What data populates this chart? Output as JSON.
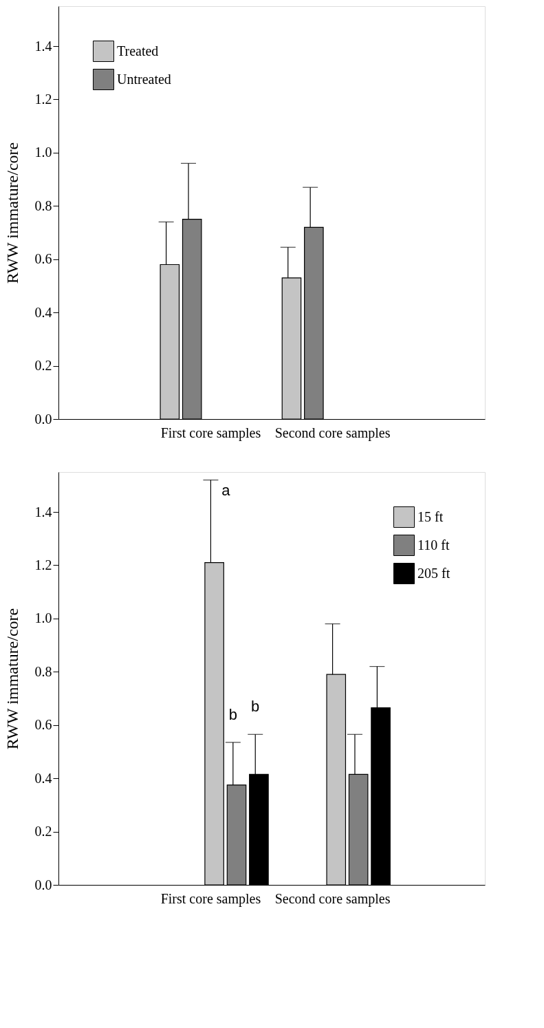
{
  "chart_data": [
    {
      "type": "bar",
      "ylabel": "RWW immature/core",
      "categories": [
        "First core samples",
        "Second core samples"
      ],
      "ylim": [
        0,
        1.55
      ],
      "yticks": [
        {
          "value": 0,
          "label": "0.0"
        },
        {
          "value": 0.2,
          "label": "0.2"
        },
        {
          "value": 0.4,
          "label": "0.4"
        },
        {
          "value": 0.6,
          "label": "0.6"
        },
        {
          "value": 0.8,
          "label": "0.8"
        },
        {
          "value": 1,
          "label": "1.0"
        },
        {
          "value": 1.2,
          "label": "1.2"
        },
        {
          "value": 1.4,
          "label": "1.4"
        }
      ],
      "legend": "top left",
      "series": [
        {
          "name": "Treated",
          "color": "#c4c4c4",
          "values": [
            0.58,
            0.53
          ],
          "errors": [
            0.16,
            0.115
          ]
        },
        {
          "name": "Untreated",
          "color": "#808080",
          "values": [
            0.75,
            0.72
          ],
          "errors": [
            0.21,
            0.15
          ]
        }
      ]
    },
    {
      "type": "bar",
      "ylabel": "RWW immature/core",
      "categories": [
        "First core samples",
        "Second core samples"
      ],
      "ylim": [
        0,
        1.55
      ],
      "yticks": [
        {
          "value": 0,
          "label": "0.0"
        },
        {
          "value": 0.2,
          "label": "0.2"
        },
        {
          "value": 0.4,
          "label": "0.4"
        },
        {
          "value": 0.6,
          "label": "0.6"
        },
        {
          "value": 0.8,
          "label": "0.8"
        },
        {
          "value": 1,
          "label": "1.0"
        },
        {
          "value": 1.2,
          "label": "1.2"
        },
        {
          "value": 1.4,
          "label": "1.4"
        }
      ],
      "legend": "top right",
      "annotations": [
        "a",
        "b",
        "b"
      ],
      "series": [
        {
          "name": "15 ft",
          "color": "#c4c4c4",
          "values": [
            1.21,
            0.79
          ],
          "errors": [
            0.31,
            0.19
          ]
        },
        {
          "name": "110 ft",
          "color": "#808080",
          "values": [
            0.375,
            0.415
          ],
          "errors": [
            0.16,
            0.15
          ]
        },
        {
          "name": "205 ft",
          "color": "#000000",
          "values": [
            0.415,
            0.665
          ],
          "errors": [
            0.15,
            0.155
          ]
        }
      ]
    }
  ]
}
